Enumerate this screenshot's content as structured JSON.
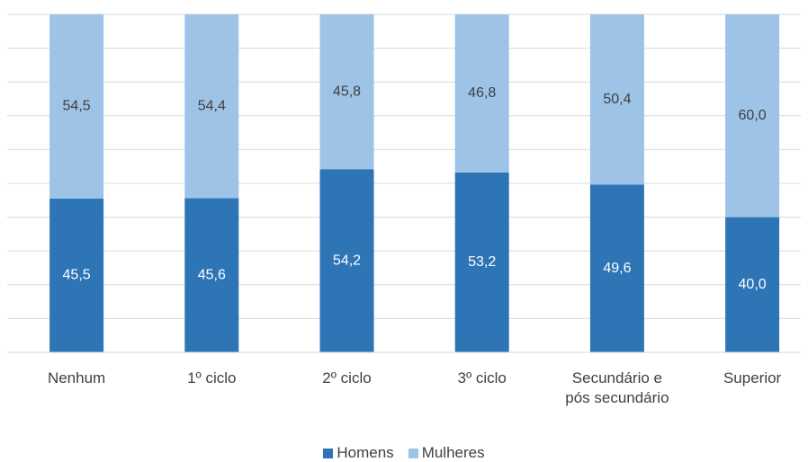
{
  "chart_data": {
    "type": "stacked_bar",
    "categories": [
      "Nenhum",
      "1º ciclo",
      "2º ciclo",
      "3º ciclo",
      "Secundário e pós secundário",
      "Superior"
    ],
    "series": [
      {
        "name": "Homens",
        "color": "#2e75b6",
        "values": [
          45.5,
          45.6,
          54.2,
          53.2,
          49.6,
          40.0
        ],
        "value_labels": [
          "45,5",
          "45,6",
          "54,2",
          "53,2",
          "49,6",
          "40,0"
        ]
      },
      {
        "name": "Mulheres",
        "color": "#9dc3e6",
        "values": [
          54.5,
          54.4,
          45.8,
          46.8,
          50.4,
          60.0
        ],
        "value_labels": [
          "54,5",
          "54,4",
          "45,8",
          "46,8",
          "50,4",
          "60,0"
        ]
      }
    ],
    "ylim": [
      0,
      100
    ],
    "yticks": [
      0,
      10,
      20,
      30,
      40,
      50,
      60,
      70,
      80,
      90,
      100
    ],
    "grid": true,
    "legend": "bottom"
  }
}
